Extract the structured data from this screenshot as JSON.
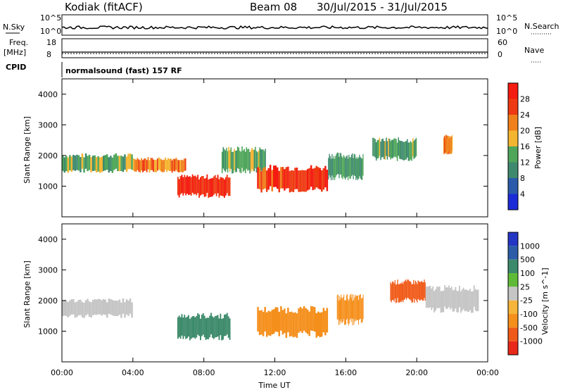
{
  "header": {
    "station": "Kodiak (fitACF)",
    "beam": "Beam 08",
    "date_range": "30/Jul/2015 - 31/Jul/2015"
  },
  "status_rows": {
    "nsky_label": "N.Sky",
    "nsky_ticks": [
      "10^5",
      "10^0"
    ],
    "nsearch_label": "N.Search",
    "nsearch_ticks": [
      "10^5",
      "10^0"
    ],
    "freq_label_1": "Freq.",
    "freq_label_2": "[MHz]",
    "freq_ticks": [
      "18",
      "8"
    ],
    "nave_label": "Nave",
    "nave_ticks": [
      "60",
      "0"
    ],
    "cpid_label": "CPID",
    "cpid_text": "normalsound (fast) 157 RF"
  },
  "xaxis": {
    "title": "Time UT",
    "ticks": [
      "00:00",
      "04:00",
      "08:00",
      "12:00",
      "16:00",
      "20:00",
      "00:00"
    ]
  },
  "colors": {
    "power": [
      "#1b2cd8",
      "#2a5bab",
      "#3f8a6f",
      "#4fa65a",
      "#f4b531",
      "#f0801c",
      "#ee3a12",
      "#f41b10"
    ],
    "velocity": [
      "#e8291a",
      "#f05a18",
      "#f58f1c",
      "#f6b43a",
      "#c5c5c5",
      "#5fbb37",
      "#3c8a6b",
      "#2c5ca8",
      "#2436c4"
    ]
  },
  "chart_data": [
    {
      "type": "heatmap",
      "title": "Power [dB]",
      "xlabel": "",
      "ylabel": "Slant Range [km]",
      "xlim": [
        "00:00",
        "24:00"
      ],
      "ylim": [
        0,
        4500
      ],
      "yticks": [
        "1000",
        "2000",
        "3000",
        "4000"
      ],
      "colorbar": {
        "label": "Power [dB]",
        "range": [
          0,
          32
        ],
        "ticks": [
          "4",
          "8",
          "12",
          "16",
          "20",
          "24",
          "28"
        ]
      },
      "echo_regions": [
        {
          "t_start": 0.0,
          "t_end": 4.0,
          "range_min": 1500,
          "range_max": 2000,
          "value": 14
        },
        {
          "t_start": 4.0,
          "t_end": 7.0,
          "range_min": 1500,
          "range_max": 1900,
          "value": 22
        },
        {
          "t_start": 6.5,
          "t_end": 9.5,
          "range_min": 700,
          "range_max": 1300,
          "value": 28
        },
        {
          "t_start": 9.0,
          "t_end": 11.5,
          "range_min": 1500,
          "range_max": 2200,
          "value": 14
        },
        {
          "t_start": 11.0,
          "t_end": 15.0,
          "range_min": 900,
          "range_max": 1600,
          "value": 27
        },
        {
          "t_start": 15.0,
          "t_end": 17.0,
          "range_min": 1300,
          "range_max": 2000,
          "value": 12
        },
        {
          "t_start": 17.5,
          "t_end": 20.0,
          "range_min": 1900,
          "range_max": 2500,
          "value": 13
        },
        {
          "t_start": 21.5,
          "t_end": 22.0,
          "range_min": 2100,
          "range_max": 2600,
          "value": 22
        }
      ]
    },
    {
      "type": "heatmap",
      "title": "Velocity [m s^-1]",
      "xlabel": "Time UT",
      "ylabel": "Slant Range [km]",
      "xlim": [
        "00:00",
        "24:00"
      ],
      "ylim": [
        0,
        4500
      ],
      "yticks": [
        "1000",
        "2000",
        "3000",
        "4000"
      ],
      "colorbar": {
        "label": "Velocity [m s^-1]",
        "ticks": [
          "1000",
          "500",
          "100",
          "25",
          "-25",
          "-100",
          "-500",
          "-1000"
        ]
      },
      "echo_regions": [
        {
          "t_start": 0.0,
          "t_end": 4.0,
          "range_min": 1500,
          "range_max": 2000,
          "value": 0
        },
        {
          "t_start": 6.5,
          "t_end": 9.5,
          "range_min": 800,
          "range_max": 1500,
          "value": 150
        },
        {
          "t_start": 11.0,
          "t_end": 15.0,
          "range_min": 900,
          "range_max": 1700,
          "value": -150
        },
        {
          "t_start": 15.5,
          "t_end": 17.0,
          "range_min": 1300,
          "range_max": 2100,
          "value": -200
        },
        {
          "t_start": 18.5,
          "t_end": 20.5,
          "range_min": 2000,
          "range_max": 2600,
          "value": -700
        },
        {
          "t_start": 20.5,
          "t_end": 23.5,
          "range_min": 1700,
          "range_max": 2400,
          "value": 0
        }
      ]
    }
  ]
}
